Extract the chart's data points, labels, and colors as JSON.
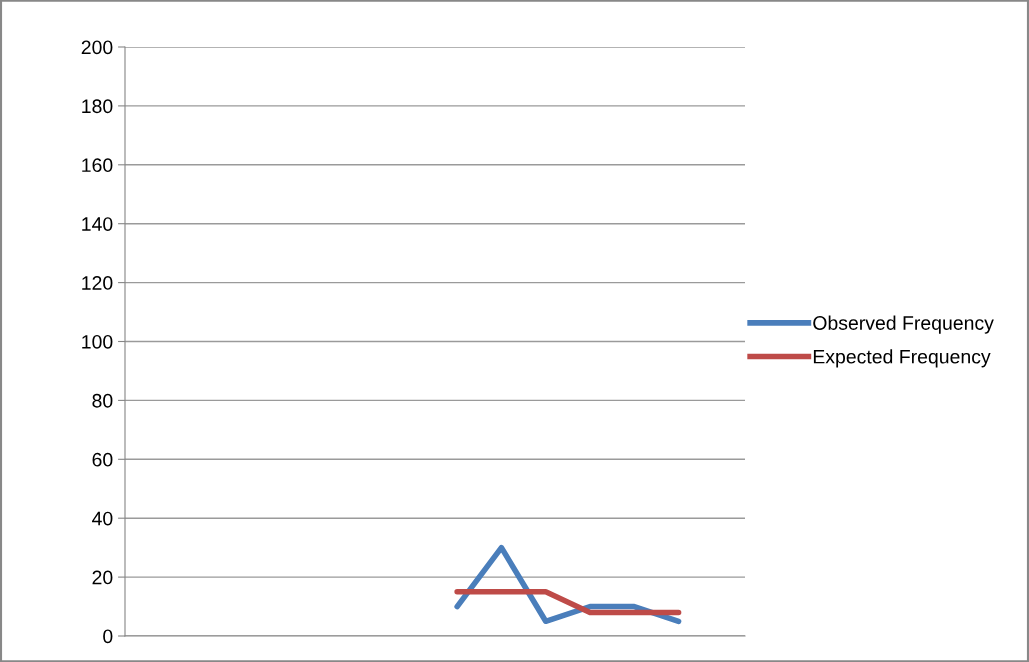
{
  "chart_data": {
    "type": "line",
    "categories": [
      null,
      null,
      null,
      null,
      null,
      null,
      null,
      null,
      null,
      null,
      null,
      null,
      null,
      null
    ],
    "series": [
      {
        "name": "Observed Frequency",
        "color": "#4a7ebb",
        "values": [
          null,
          null,
          null,
          null,
          null,
          null,
          null,
          10,
          30,
          5,
          10,
          10,
          5,
          null
        ]
      },
      {
        "name": "Expected Frequency",
        "color": "#be4b48",
        "values": [
          null,
          null,
          null,
          null,
          null,
          null,
          null,
          15,
          15,
          15,
          8,
          8,
          8,
          null
        ]
      }
    ],
    "ylim": [
      0,
      200
    ],
    "yticks": [
      0,
      20,
      40,
      60,
      80,
      100,
      120,
      140,
      160,
      180,
      200
    ],
    "grid": "y",
    "legend": "right",
    "marker": "none",
    "line_style": "solid"
  }
}
